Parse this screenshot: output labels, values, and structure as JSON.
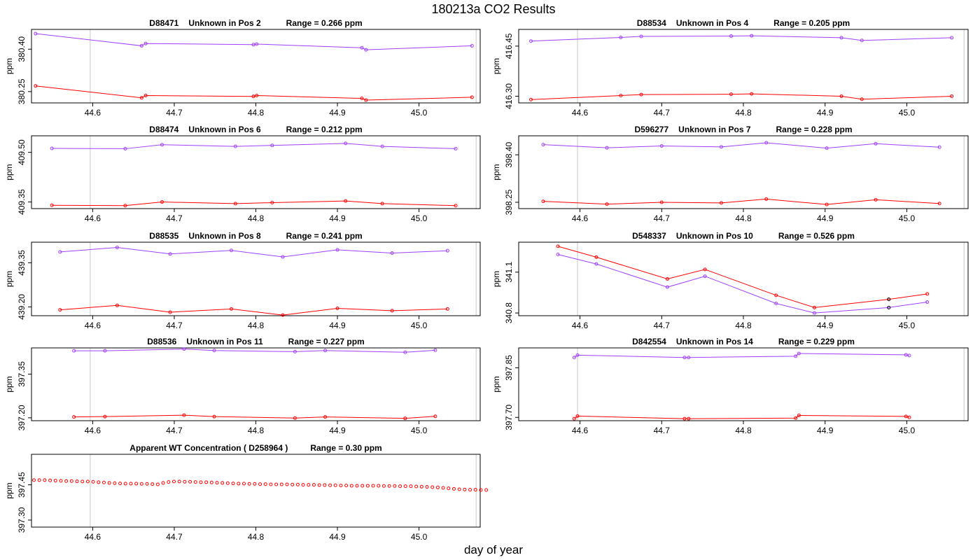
{
  "title": "180213a  CO2 Results",
  "xlabel": "day of year",
  "ylabel": "ppm",
  "chart_data": [
    {
      "type": "line",
      "header": {
        "id": "D88471",
        "name": "Unknown in Pos 2",
        "range": "Range =  0.266 ppm"
      },
      "xlim": [
        44.525,
        45.075
      ],
      "ylim": [
        380.21,
        380.47
      ],
      "yticks": [
        380.25,
        380.4
      ],
      "yticklabels": [
        "380.25",
        "380.40"
      ],
      "xticks": [
        44.6,
        44.7,
        44.8,
        44.9,
        45.0
      ],
      "xticklabels": [
        "44.6",
        "44.7",
        "44.8",
        "44.9",
        "45.0"
      ],
      "vlines": [
        44.597,
        45.07
      ],
      "series": [
        {
          "name": "upper",
          "color": "#a040ff",
          "x": [
            44.53,
            44.66,
            44.665,
            44.797,
            44.801,
            44.93,
            44.935,
            45.065
          ],
          "y": [
            380.455,
            380.412,
            380.42,
            380.416,
            380.418,
            380.405,
            380.398,
            380.412
          ]
        },
        {
          "name": "lower",
          "color": "#ff0000",
          "x": [
            44.53,
            44.66,
            44.665,
            44.797,
            44.801,
            44.93,
            44.935,
            45.065
          ],
          "y": [
            380.27,
            380.228,
            380.236,
            380.233,
            380.236,
            380.226,
            380.22,
            380.23
          ]
        }
      ]
    },
    {
      "type": "line",
      "header": {
        "id": "D88534",
        "name": "Unknown in Pos 4",
        "range": "Range =  0.205 ppm"
      },
      "xlim": [
        44.525,
        45.075
      ],
      "ylim": [
        416.28,
        416.5
      ],
      "yticks": [
        416.3,
        416.45
      ],
      "yticklabels": [
        "416.30",
        "416.45"
      ],
      "xticks": [
        44.6,
        44.7,
        44.8,
        44.9,
        45.0
      ],
      "xticklabels": [
        "44.6",
        "44.7",
        "44.8",
        "44.9",
        "45.0"
      ],
      "vlines": [
        44.597,
        45.07
      ],
      "series": [
        {
          "name": "upper",
          "color": "#a040ff",
          "x": [
            44.54,
            44.65,
            44.675,
            44.785,
            44.81,
            44.92,
            44.945,
            45.055
          ],
          "y": [
            416.465,
            416.476,
            416.479,
            416.48,
            416.481,
            416.475,
            416.467,
            416.475
          ]
        },
        {
          "name": "lower",
          "color": "#ff0000",
          "x": [
            44.54,
            44.65,
            44.675,
            44.785,
            44.81,
            44.92,
            44.945,
            45.055
          ],
          "y": [
            416.29,
            416.302,
            416.305,
            416.306,
            416.307,
            416.3,
            416.291,
            416.3
          ]
        }
      ]
    },
    {
      "type": "line",
      "header": {
        "id": "D88474",
        "name": "Unknown in Pos 6",
        "range": "Range =  0.212 ppm"
      },
      "xlim": [
        44.525,
        45.075
      ],
      "ylim": [
        409.33,
        409.55
      ],
      "yticks": [
        409.35,
        409.5
      ],
      "yticklabels": [
        "409.35",
        "409.50"
      ],
      "xticks": [
        44.6,
        44.7,
        44.8,
        44.9,
        45.0
      ],
      "xticklabels": [
        "44.6",
        "44.7",
        "44.8",
        "44.9",
        "45.0"
      ],
      "vlines": [
        44.597,
        45.07
      ],
      "series": [
        {
          "name": "upper",
          "color": "#a040ff",
          "x": [
            44.55,
            44.64,
            44.685,
            44.775,
            44.82,
            44.91,
            44.955,
            45.045
          ],
          "y": [
            409.512,
            409.511,
            409.523,
            409.518,
            409.521,
            409.527,
            409.518,
            409.511
          ]
        },
        {
          "name": "lower",
          "color": "#ff0000",
          "x": [
            44.55,
            44.64,
            44.685,
            44.775,
            44.82,
            44.91,
            44.955,
            45.045
          ],
          "y": [
            409.34,
            409.339,
            409.35,
            409.345,
            409.348,
            409.353,
            409.345,
            409.339
          ]
        }
      ]
    },
    {
      "type": "line",
      "header": {
        "id": "D596277",
        "name": "Unknown in Pos 7",
        "range": "Range =  0.228 ppm"
      },
      "xlim": [
        44.525,
        45.075
      ],
      "ylim": [
        398.23,
        398.46
      ],
      "yticks": [
        398.25,
        398.4
      ],
      "yticklabels": [
        "398.25",
        "398.40"
      ],
      "xticks": [
        44.6,
        44.7,
        44.8,
        44.9,
        45.0
      ],
      "xticklabels": [
        "44.6",
        "44.7",
        "44.8",
        "44.9",
        "45.0"
      ],
      "vlines": [
        44.597,
        45.07
      ],
      "series": [
        {
          "name": "upper",
          "color": "#a040ff",
          "x": [
            44.555,
            44.633,
            44.7,
            44.773,
            44.828,
            44.902,
            44.962,
            45.04
          ],
          "y": [
            398.432,
            398.422,
            398.428,
            398.425,
            398.438,
            398.421,
            398.435,
            398.424
          ]
        },
        {
          "name": "lower",
          "color": "#ff0000",
          "x": [
            44.555,
            44.633,
            44.7,
            44.773,
            44.828,
            44.902,
            44.962,
            45.04
          ],
          "y": [
            398.253,
            398.244,
            398.25,
            398.248,
            398.26,
            398.243,
            398.258,
            398.246
          ]
        }
      ]
    },
    {
      "type": "line",
      "header": {
        "id": "D88535",
        "name": "Unknown in Pos 8",
        "range": "Range =  0.241 ppm"
      },
      "xlim": [
        44.525,
        45.075
      ],
      "ylim": [
        439.17,
        439.42
      ],
      "yticks": [
        439.2,
        439.35
      ],
      "yticklabels": [
        "439.20",
        "439.35"
      ],
      "xticks": [
        44.6,
        44.7,
        44.8,
        44.9,
        45.0
      ],
      "xticklabels": [
        "44.6",
        "44.7",
        "44.8",
        "44.9",
        "45.0"
      ],
      "vlines": [
        44.597,
        45.07
      ],
      "series": [
        {
          "name": "upper",
          "color": "#a040ff",
          "x": [
            44.56,
            44.63,
            44.695,
            44.77,
            44.833,
            44.9,
            44.967,
            45.035
          ],
          "y": [
            439.387,
            439.402,
            439.38,
            439.392,
            439.37,
            439.394,
            439.383,
            439.391
          ]
        },
        {
          "name": "lower",
          "color": "#ff0000",
          "x": [
            44.56,
            44.63,
            44.695,
            44.77,
            44.833,
            44.9,
            44.967,
            45.035
          ],
          "y": [
            439.19,
            439.205,
            439.182,
            439.193,
            439.172,
            439.195,
            439.187,
            439.193
          ]
        }
      ]
    },
    {
      "type": "line",
      "header": {
        "id": "D548337",
        "name": "Unknown in Pos 10",
        "range": "Range =  0.526 ppm"
      },
      "xlim": [
        44.525,
        45.075
      ],
      "ylim": [
        340.78,
        341.32
      ],
      "yticks": [
        340.8,
        341.1
      ],
      "yticklabels": [
        "340.8",
        "341.1"
      ],
      "xticks": [
        44.6,
        44.7,
        44.8,
        44.9,
        45.0
      ],
      "xticklabels": [
        "44.6",
        "44.7",
        "44.8",
        "44.9",
        "45.0"
      ],
      "vlines": [
        44.597,
        45.07
      ],
      "series": [
        {
          "name": "upper",
          "color": "#a040ff",
          "x": [
            44.573,
            44.62,
            44.707,
            44.753,
            44.84,
            44.887,
            44.978,
            45.025
          ],
          "y": [
            341.23,
            341.16,
            340.99,
            341.07,
            340.87,
            340.8,
            340.84,
            340.88
          ]
        },
        {
          "name": "lower",
          "color": "#ff0000",
          "x": [
            44.573,
            44.62,
            44.707,
            44.753,
            44.84,
            44.887,
            44.978,
            45.025
          ],
          "y": [
            341.29,
            341.21,
            341.05,
            341.12,
            340.93,
            340.84,
            340.9,
            340.94
          ]
        },
        {
          "name": "flagged",
          "color": "#000000",
          "line": false,
          "x": [
            44.978,
            44.978
          ],
          "y": [
            340.84,
            340.9
          ]
        }
      ]
    },
    {
      "type": "line",
      "header": {
        "id": "D88536",
        "name": "Unknown in Pos 11",
        "range": "Range =  0.227 ppm"
      },
      "xlim": [
        44.525,
        45.075
      ],
      "ylim": [
        397.19,
        397.44
      ],
      "yticks": [
        397.2,
        397.35
      ],
      "yticklabels": [
        "397.20",
        "397.35"
      ],
      "xticks": [
        44.6,
        44.7,
        44.8,
        44.9,
        45.0
      ],
      "xticklabels": [
        "44.6",
        "44.7",
        "44.8",
        "44.9",
        "45.0"
      ],
      "vlines": [
        44.597,
        45.07
      ],
      "series": [
        {
          "name": "upper",
          "color": "#a040ff",
          "x": [
            44.577,
            44.615,
            44.712,
            44.749,
            44.848,
            44.885,
            44.983,
            45.02
          ],
          "y": [
            397.43,
            397.43,
            397.436,
            397.431,
            397.427,
            397.431,
            397.425,
            397.432
          ]
        },
        {
          "name": "lower",
          "color": "#ff0000",
          "x": [
            44.577,
            44.615,
            44.712,
            44.749,
            44.848,
            44.885,
            44.983,
            45.02
          ],
          "y": [
            397.203,
            397.204,
            397.209,
            397.204,
            397.199,
            397.203,
            397.198,
            397.205
          ]
        }
      ]
    },
    {
      "type": "line",
      "header": {
        "id": "D842554",
        "name": "Unknown in Pos 14",
        "range": "Range =  0.229 ppm"
      },
      "xlim": [
        44.525,
        45.075
      ],
      "ylim": [
        397.69,
        397.91
      ],
      "yticks": [
        397.7,
        397.85
      ],
      "yticklabels": [
        "397.70",
        "397.85"
      ],
      "xticks": [
        44.6,
        44.7,
        44.8,
        44.9,
        45.0
      ],
      "xticklabels": [
        "44.6",
        "44.7",
        "44.8",
        "44.9",
        "45.0"
      ],
      "vlines": [
        44.597,
        45.07
      ],
      "series": [
        {
          "name": "upper",
          "color": "#a040ff",
          "x": [
            44.593,
            44.597,
            44.728,
            44.733,
            44.864,
            44.868,
            44.999,
            45.003
          ],
          "y": [
            397.881,
            397.888,
            397.881,
            397.881,
            397.885,
            397.893,
            397.889,
            397.887
          ]
        },
        {
          "name": "lower",
          "color": "#ff0000",
          "x": [
            44.593,
            44.597,
            44.728,
            44.733,
            44.864,
            44.868,
            44.999,
            45.003
          ],
          "y": [
            397.696,
            397.704,
            397.696,
            397.696,
            397.698,
            397.706,
            397.703,
            397.7
          ]
        }
      ]
    },
    {
      "type": "scatter",
      "header": {
        "text": "Apparent WT Concentration ( D258964 )",
        "range": "Range = 0.30 ppm"
      },
      "xlim": [
        44.525,
        45.075
      ],
      "ylim": [
        397.27,
        397.58
      ],
      "yticks": [
        397.3,
        397.45
      ],
      "yticklabels": [
        "397.30",
        "397.45"
      ],
      "xticks": [
        44.6,
        44.7,
        44.8,
        44.9,
        45.0
      ],
      "xticklabels": [
        "44.6",
        "44.7",
        "44.8",
        "44.9",
        "45.0"
      ],
      "vlines": [
        44.597,
        45.07
      ],
      "series": [
        {
          "name": "WT",
          "color": "#ff0000",
          "line": false,
          "x_start": 44.528,
          "x_step": 0.0066,
          "y": [
            397.47,
            397.47,
            397.47,
            397.469,
            397.468,
            397.467,
            397.466,
            397.466,
            397.465,
            397.464,
            397.464,
            397.463,
            397.461,
            397.46,
            397.458,
            397.457,
            397.456,
            397.455,
            397.455,
            397.455,
            397.454,
            397.454,
            397.453,
            397.452,
            397.458,
            397.462,
            397.464,
            397.464,
            397.463,
            397.463,
            397.462,
            397.461,
            397.461,
            397.46,
            397.459,
            397.458,
            397.457,
            397.456,
            397.455,
            397.455,
            397.454,
            397.454,
            397.453,
            397.453,
            397.452,
            397.452,
            397.452,
            397.452,
            397.451,
            397.451,
            397.45,
            397.45,
            397.45,
            397.449,
            397.449,
            397.448,
            397.448,
            397.447,
            397.447,
            397.446,
            397.446,
            397.446,
            397.446,
            397.446,
            397.446,
            397.445,
            397.445,
            397.445,
            397.444,
            397.444,
            397.444,
            397.443,
            397.442,
            397.441,
            397.44,
            397.439,
            397.437,
            397.435,
            397.433,
            397.431,
            397.43,
            397.429,
            397.429,
            397.428,
            397.428
          ]
        }
      ]
    }
  ]
}
